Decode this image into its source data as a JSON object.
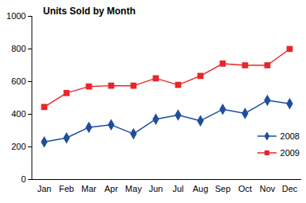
{
  "chart_data": {
    "type": "line",
    "title": "Units Sold by Month",
    "categories": [
      "Jan",
      "Feb",
      "Mar",
      "Apr",
      "May",
      "Jun",
      "Jul",
      "Aug",
      "Sep",
      "Oct",
      "Nov",
      "Dec"
    ],
    "series": [
      {
        "name": "2008",
        "color": "#1f4e9c",
        "marker": "diamond",
        "values": [
          230,
          255,
          320,
          335,
          280,
          370,
          395,
          360,
          430,
          405,
          485,
          465
        ]
      },
      {
        "name": "2009",
        "color": "#e8262a",
        "marker": "square",
        "values": [
          445,
          530,
          570,
          575,
          575,
          620,
          580,
          635,
          710,
          700,
          700,
          800
        ]
      }
    ],
    "ylim": [
      0,
      1000
    ],
    "yticks": [
      0,
      200,
      400,
      600,
      800,
      1000
    ],
    "grid": false,
    "legend": "lower right"
  }
}
